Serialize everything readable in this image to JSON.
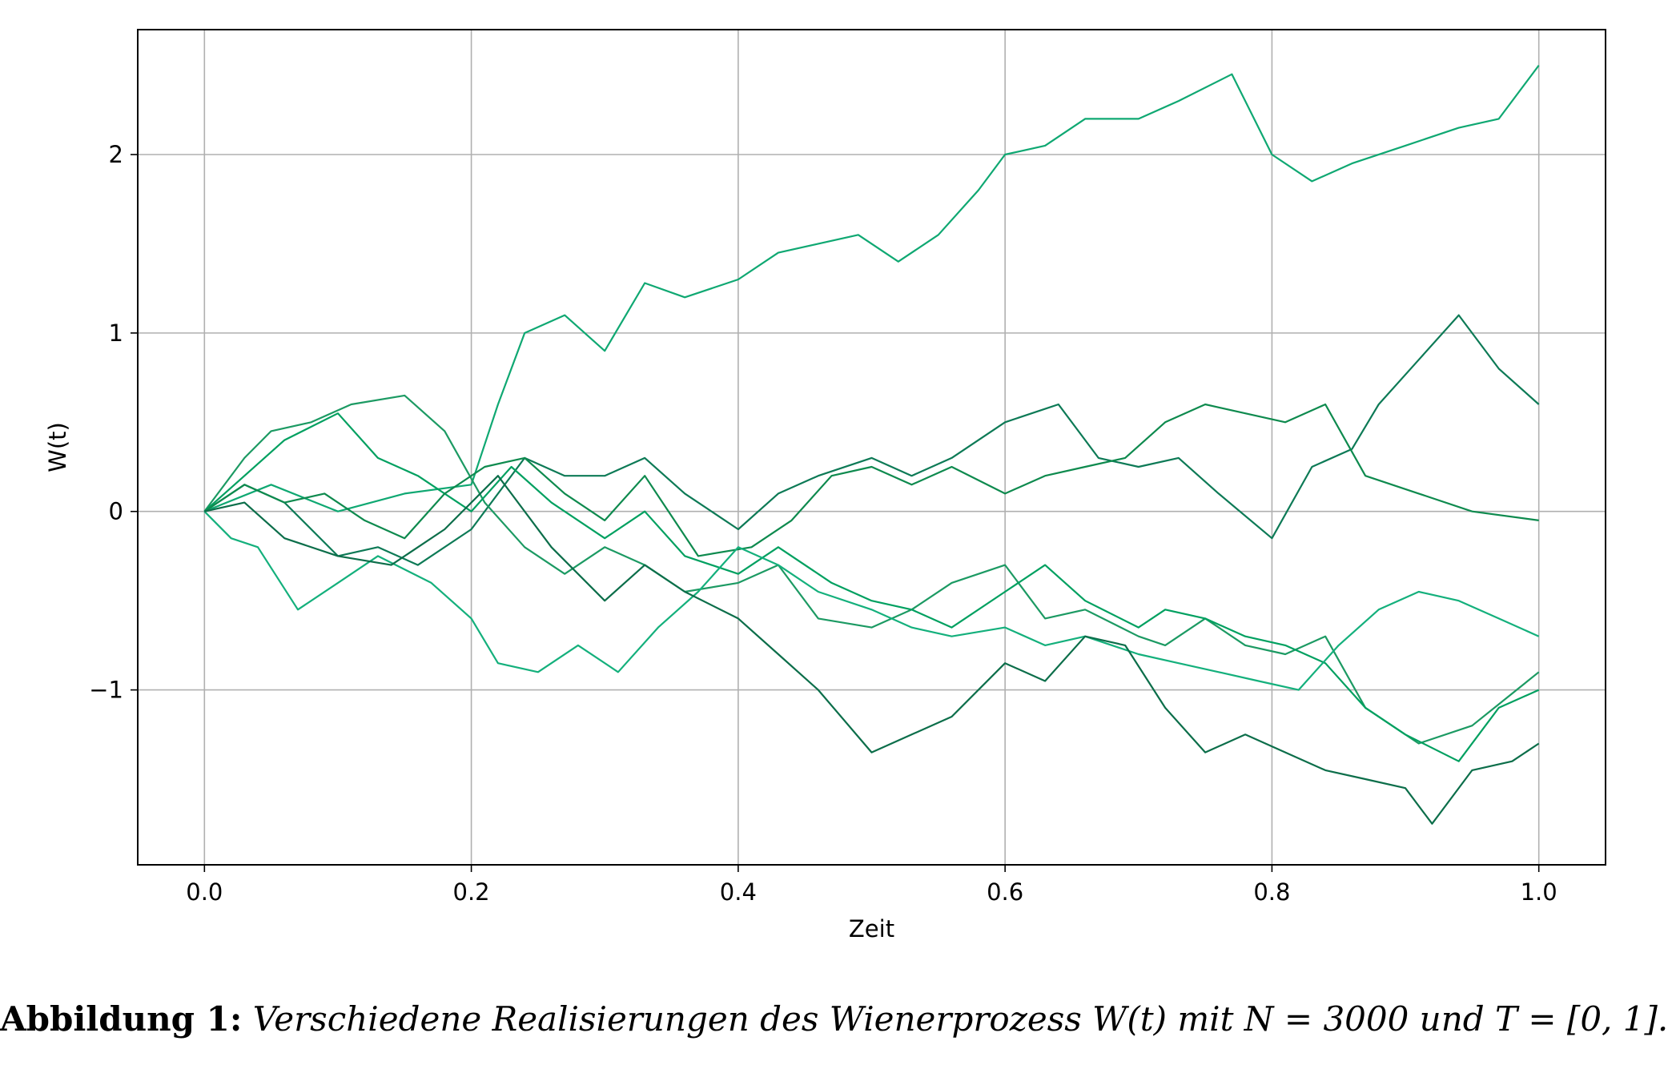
{
  "caption": {
    "label": "Abbildung 1:",
    "text": "Verschiedene Realisierungen des Wienerprozess W(t) mit N = 3000 und T = [0, 1]."
  },
  "chart_data": {
    "type": "line",
    "title": "",
    "xlabel": "Zeit",
    "ylabel": "W(t)",
    "xlim": [
      -0.05,
      1.05
    ],
    "ylim": [
      -1.98,
      2.7
    ],
    "xticks": [
      0.0,
      0.2,
      0.4,
      0.6,
      0.8,
      1.0
    ],
    "xtick_labels": [
      "0.0",
      "0.2",
      "0.4",
      "0.6",
      "0.8",
      "1.0"
    ],
    "yticks": [
      -1,
      0,
      1,
      2
    ],
    "ytick_labels": [
      "−1",
      "0",
      "1",
      "2"
    ],
    "grid": true,
    "legend": "none",
    "series": [
      {
        "color": "#0fa872",
        "x": [
          0,
          0.05,
          0.1,
          0.15,
          0.2,
          0.22,
          0.24,
          0.27,
          0.3,
          0.33,
          0.36,
          0.4,
          0.43,
          0.46,
          0.49,
          0.52,
          0.55,
          0.58,
          0.6,
          0.63,
          0.66,
          0.7,
          0.73,
          0.77,
          0.8,
          0.83,
          0.86,
          0.9,
          0.94,
          0.97,
          1.0
        ],
        "y": [
          0,
          0.15,
          0.0,
          0.1,
          0.15,
          0.6,
          1.0,
          1.1,
          0.9,
          1.28,
          1.2,
          1.3,
          1.45,
          1.5,
          1.55,
          1.4,
          1.55,
          1.8,
          2.0,
          2.05,
          2.2,
          2.2,
          2.3,
          2.45,
          2.0,
          1.85,
          1.95,
          2.05,
          2.15,
          2.2,
          2.5
        ]
      },
      {
        "color": "#0d7a56",
        "x": [
          0,
          0.03,
          0.06,
          0.1,
          0.13,
          0.16,
          0.2,
          0.24,
          0.27,
          0.3,
          0.33,
          0.36,
          0.4,
          0.43,
          0.46,
          0.5,
          0.53,
          0.56,
          0.6,
          0.64,
          0.67,
          0.7,
          0.73,
          0.76,
          0.8,
          0.83,
          0.86,
          0.88,
          0.91,
          0.94,
          0.97,
          1.0
        ],
        "y": [
          0,
          0.15,
          0.05,
          -0.25,
          -0.2,
          -0.3,
          -0.1,
          0.3,
          0.2,
          0.2,
          0.3,
          0.1,
          -0.1,
          0.1,
          0.2,
          0.3,
          0.2,
          0.3,
          0.5,
          0.6,
          0.3,
          0.25,
          0.3,
          0.1,
          -0.15,
          0.25,
          0.35,
          0.6,
          0.85,
          1.1,
          0.8,
          0.6
        ]
      },
      {
        "color": "#1c9a63",
        "x": [
          0,
          0.03,
          0.05,
          0.08,
          0.11,
          0.15,
          0.18,
          0.21,
          0.24,
          0.27,
          0.3,
          0.33,
          0.36,
          0.4,
          0.43,
          0.46,
          0.5,
          0.53,
          0.56,
          0.6,
          0.63,
          0.66,
          0.7,
          0.72,
          0.75,
          0.78,
          0.81,
          0.84,
          0.87,
          0.91,
          0.95,
          1.0
        ],
        "y": [
          0,
          0.3,
          0.45,
          0.5,
          0.6,
          0.65,
          0.45,
          0.05,
          -0.2,
          -0.35,
          -0.2,
          -0.3,
          -0.45,
          -0.4,
          -0.3,
          -0.6,
          -0.65,
          -0.55,
          -0.4,
          -0.3,
          -0.6,
          -0.55,
          -0.7,
          -0.75,
          -0.6,
          -0.75,
          -0.8,
          -0.7,
          -1.1,
          -1.3,
          -1.2,
          -0.9
        ]
      },
      {
        "color": "#00a060",
        "x": [
          0,
          0.03,
          0.06,
          0.1,
          0.13,
          0.16,
          0.2,
          0.23,
          0.26,
          0.3,
          0.33,
          0.36,
          0.4,
          0.43,
          0.47,
          0.5,
          0.53,
          0.56,
          0.6,
          0.63,
          0.66,
          0.7,
          0.72,
          0.75,
          0.78,
          0.81,
          0.84,
          0.87,
          0.9,
          0.94,
          0.97,
          1.0
        ],
        "y": [
          0,
          0.2,
          0.4,
          0.55,
          0.3,
          0.2,
          0.0,
          0.25,
          0.05,
          -0.15,
          0.0,
          -0.25,
          -0.35,
          -0.2,
          -0.4,
          -0.5,
          -0.55,
          -0.65,
          -0.45,
          -0.3,
          -0.5,
          -0.65,
          -0.55,
          -0.6,
          -0.7,
          -0.75,
          -0.85,
          -1.1,
          -1.25,
          -1.4,
          -1.1,
          -1.0
        ]
      },
      {
        "color": "#0e8a4e",
        "x": [
          0,
          0.03,
          0.06,
          0.09,
          0.12,
          0.15,
          0.18,
          0.21,
          0.24,
          0.27,
          0.3,
          0.33,
          0.37,
          0.41,
          0.44,
          0.47,
          0.5,
          0.53,
          0.56,
          0.6,
          0.63,
          0.66,
          0.69,
          0.72,
          0.75,
          0.78,
          0.81,
          0.84,
          0.87,
          0.91,
          0.95,
          1.0
        ],
        "y": [
          0,
          0.15,
          0.05,
          0.1,
          -0.05,
          -0.15,
          0.1,
          0.25,
          0.3,
          0.1,
          -0.05,
          0.2,
          -0.25,
          -0.2,
          -0.05,
          0.2,
          0.25,
          0.15,
          0.25,
          0.1,
          0.2,
          0.25,
          0.3,
          0.5,
          0.6,
          0.55,
          0.5,
          0.6,
          0.2,
          0.1,
          0.0,
          -0.05
        ]
      },
      {
        "color": "#14b07c",
        "x": [
          0,
          0.02,
          0.04,
          0.07,
          0.1,
          0.13,
          0.17,
          0.2,
          0.22,
          0.25,
          0.28,
          0.31,
          0.34,
          0.37,
          0.4,
          0.43,
          0.46,
          0.5,
          0.53,
          0.56,
          0.6,
          0.63,
          0.66,
          0.7,
          0.73,
          0.76,
          0.79,
          0.82,
          0.85,
          0.88,
          0.91,
          0.94,
          0.97,
          1.0
        ],
        "y": [
          0,
          -0.15,
          -0.2,
          -0.55,
          -0.4,
          -0.25,
          -0.4,
          -0.6,
          -0.85,
          -0.9,
          -0.75,
          -0.9,
          -0.65,
          -0.45,
          -0.2,
          -0.3,
          -0.45,
          -0.55,
          -0.65,
          -0.7,
          -0.65,
          -0.75,
          -0.7,
          -0.8,
          -0.85,
          -0.9,
          -0.95,
          -1.0,
          -0.75,
          -0.55,
          -0.45,
          -0.5,
          -0.6,
          -0.7
        ]
      },
      {
        "color": "#0c6e4a",
        "x": [
          0,
          0.03,
          0.06,
          0.1,
          0.14,
          0.18,
          0.22,
          0.26,
          0.3,
          0.33,
          0.36,
          0.4,
          0.43,
          0.46,
          0.5,
          0.53,
          0.56,
          0.6,
          0.63,
          0.66,
          0.69,
          0.72,
          0.75,
          0.78,
          0.81,
          0.84,
          0.87,
          0.9,
          0.92,
          0.95,
          0.98,
          1.0
        ],
        "y": [
          0,
          0.05,
          -0.15,
          -0.25,
          -0.3,
          -0.1,
          0.2,
          -0.2,
          -0.5,
          -0.3,
          -0.45,
          -0.6,
          -0.8,
          -1.0,
          -1.35,
          -1.25,
          -1.15,
          -0.85,
          -0.95,
          -0.7,
          -0.75,
          -1.1,
          -1.35,
          -1.25,
          -1.35,
          -1.45,
          -1.5,
          -1.55,
          -1.75,
          -1.45,
          -1.4,
          -1.3
        ]
      }
    ]
  }
}
